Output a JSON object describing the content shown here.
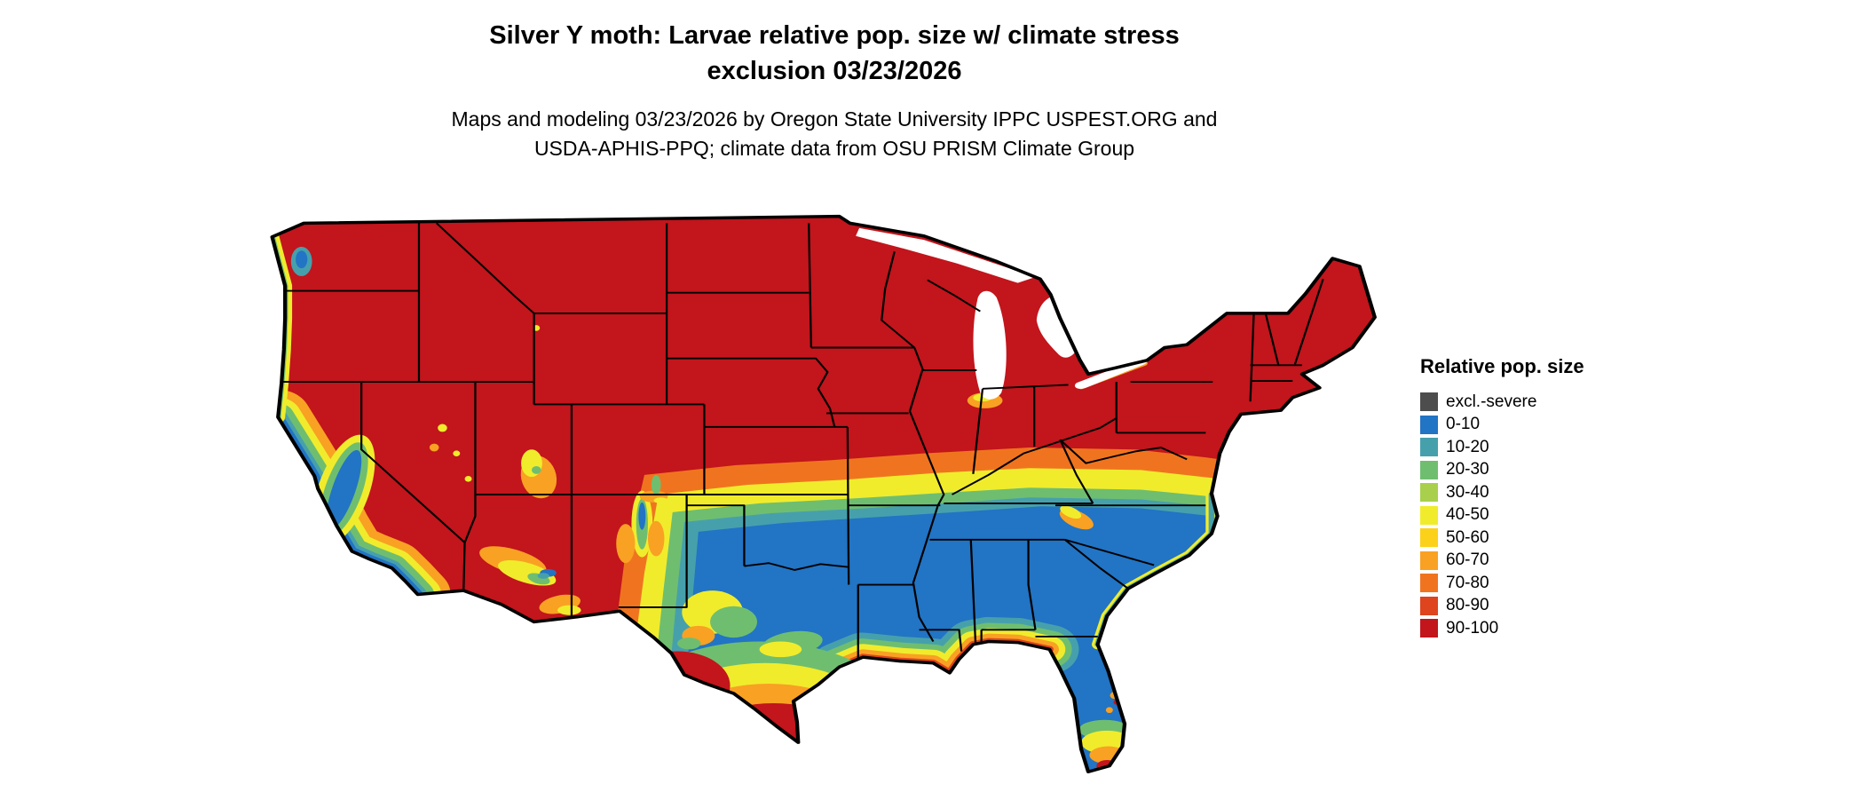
{
  "title": {
    "line1": "Silver Y moth: Larvae relative pop. size w/ climate stress",
    "line2": "exclusion 03/23/2026"
  },
  "subtitle": {
    "line1": "Maps and modeling 03/23/2026 by Oregon State University IPPC USPEST.ORG and",
    "line2": "USDA-APHIS-PPQ; climate data from OSU PRISM Climate Group"
  },
  "legend": {
    "title": "Relative pop. size",
    "items": [
      {
        "label": "excl.-severe",
        "key": "excl"
      },
      {
        "label": "0-10",
        "key": "b0"
      },
      {
        "label": "10-20",
        "key": "b10"
      },
      {
        "label": "20-30",
        "key": "b20"
      },
      {
        "label": "30-40",
        "key": "b30"
      },
      {
        "label": "40-50",
        "key": "b40"
      },
      {
        "label": "50-60",
        "key": "b50"
      },
      {
        "label": "60-70",
        "key": "b60"
      },
      {
        "label": "70-80",
        "key": "b70"
      },
      {
        "label": "80-90",
        "key": "b80"
      },
      {
        "label": "90-100",
        "key": "b90"
      }
    ]
  },
  "palette": {
    "excl": "#4D4D4D",
    "b0": "#2274C4",
    "b10": "#46A0AC",
    "b20": "#6FBE70",
    "b30": "#A8D04C",
    "b40": "#F0EC2C",
    "b50": "#FCD119",
    "b60": "#F9A123",
    "b70": "#F0741F",
    "b80": "#DE441E",
    "b90": "#C2151C",
    "water": "#FFFFFF",
    "border": "#000000"
  },
  "map_data": {
    "type": "raster-choropleth",
    "region": "Contiguous United States with state boundaries",
    "value_units": "relative population size (0-100), with climate stress exclusion",
    "pattern": [
      {
        "area": "Northern and central US north of ~38N",
        "category": "90-100"
      },
      {
        "area": "Transition band ~35-38.5N (s. Kansas, Missouri, Kentucky, Tennessee, Virginia)",
        "category": "gradient 70-80 / 60-70 / 40-60 / 20-40 / 10-20"
      },
      {
        "area": "Southern US (central Texas, Oklahoma south, Gulf states to the Carolinas)",
        "category": "0-10"
      },
      {
        "area": "Gulf Coast strip and south Texas",
        "category": "gradient back to 40-100 toward coast, 90-100 at south Texas tip"
      },
      {
        "area": "Florida peninsula",
        "category": "0-10 with 30-100 gradient at southern tip"
      },
      {
        "area": "California coast and Central Valley",
        "category": "0-40 with 40-80 fringe"
      },
      {
        "area": "Interior Southwest (AZ, NM, s. UT) and west Texas",
        "category": "mottled 30-100"
      },
      {
        "area": "Pacific Northwest coastline",
        "category": "thin 20-60 fringe"
      }
    ]
  }
}
